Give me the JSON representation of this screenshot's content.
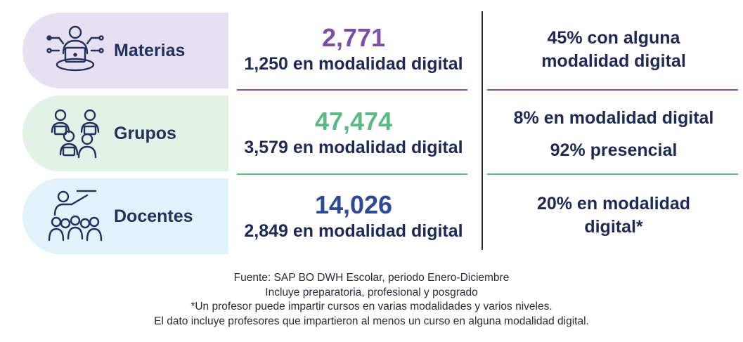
{
  "colors": {
    "materias_bg": "#e7e0f1",
    "grupos_bg": "#e2f2e7",
    "docentes_bg": "#e1f2fb",
    "materias_accent": "#7b4fa6",
    "grupos_accent": "#5cb884",
    "docentes_accent": "#2c4a96",
    "text": "#1e2a55"
  },
  "rows": [
    {
      "label": "Materias",
      "icon": "student-laptop-icon",
      "total": "2,771",
      "digital": "1,250 en modalidad digital",
      "right_line1": "45% con alguna",
      "right_line2": "modalidad digital"
    },
    {
      "label": "Grupos",
      "icon": "group-people-laptops-icon",
      "total": "47,474",
      "digital": "3,579 en modalidad digital",
      "right_line1": "8% en modalidad digital",
      "right_line2": "92% presencial"
    },
    {
      "label": "Docentes",
      "icon": "teacher-audience-icon",
      "total": "14,026",
      "digital": "2,849 en modalidad digital",
      "right_line1": "20% en modalidad",
      "right_line2": "digital*"
    }
  ],
  "notes": {
    "line1": "Fuente: SAP BO DWH Escolar, periodo Enero-Diciembre",
    "line2": "Incluye preparatoria, profesional y posgrado",
    "line3": "*Un profesor puede impartir cursos en varias modalidades y varios niveles.",
    "line4": "El dato incluye profesores que impartieron al menos un curso en alguna modalidad digital."
  }
}
